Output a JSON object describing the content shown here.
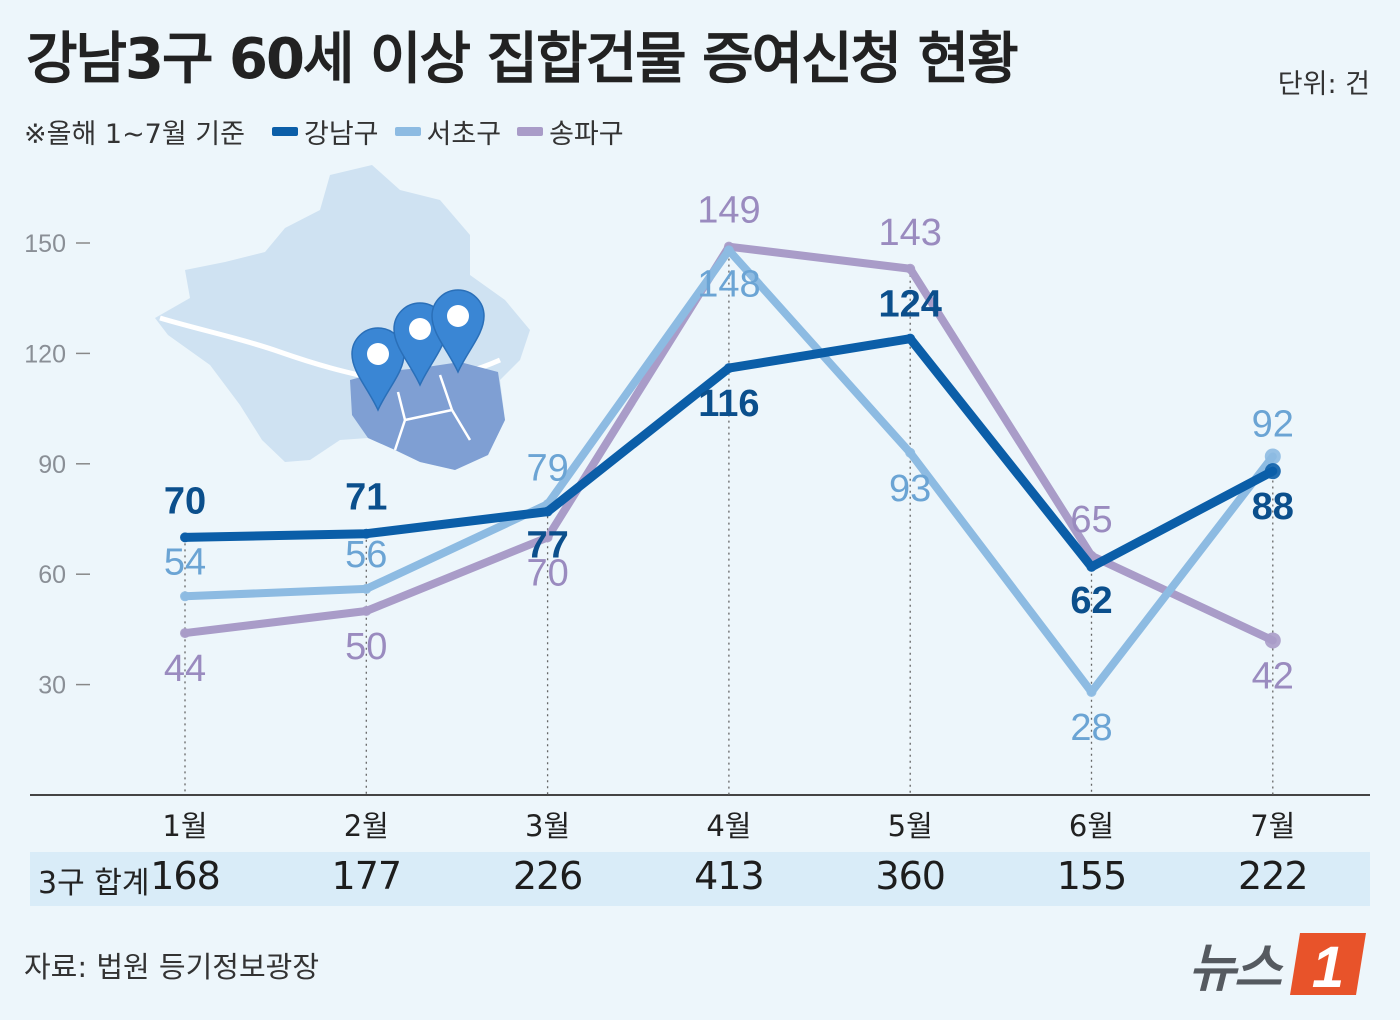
{
  "title": "강남3구 60세 이상 집합건물 증여신청 현황",
  "unit": "단위: 건",
  "basis": "※올해 1~7월 기준",
  "legend": [
    {
      "name": "강남구",
      "color": "#0b5ea8"
    },
    {
      "name": "서초구",
      "color": "#8dbbe2"
    },
    {
      "name": "송파구",
      "color": "#a99cc8"
    }
  ],
  "total_label": "3구 합계",
  "source": "자료: 법원 등기정보광장",
  "brand": {
    "text": "뉴스",
    "logo_mark": "1",
    "logo_color": "#e8532a"
  },
  "colors": {
    "gangnam_label": "#0b4f8c",
    "seocho_label": "#6ba4d4",
    "songpa_label": "#9a8bbf",
    "axis": "#444444",
    "map_fill": "#cfe2f2",
    "map_highlight": "#7f9fd3",
    "pin": "#3a86d4"
  },
  "chart_data": {
    "type": "line",
    "categories": [
      "1월",
      "2월",
      "3월",
      "4월",
      "5월",
      "6월",
      "7월"
    ],
    "yticks": [
      30,
      60,
      90,
      120,
      150
    ],
    "ylim": [
      0,
      165
    ],
    "series": [
      {
        "name": "송파구",
        "values": [
          44,
          50,
          70,
          149,
          143,
          65,
          42
        ]
      },
      {
        "name": "서초구",
        "values": [
          54,
          56,
          79,
          148,
          93,
          28,
          92
        ]
      },
      {
        "name": "강남구",
        "values": [
          70,
          71,
          77,
          116,
          124,
          62,
          88
        ]
      }
    ],
    "totals": [
      168,
      177,
      226,
      413,
      360,
      155,
      222
    ]
  }
}
